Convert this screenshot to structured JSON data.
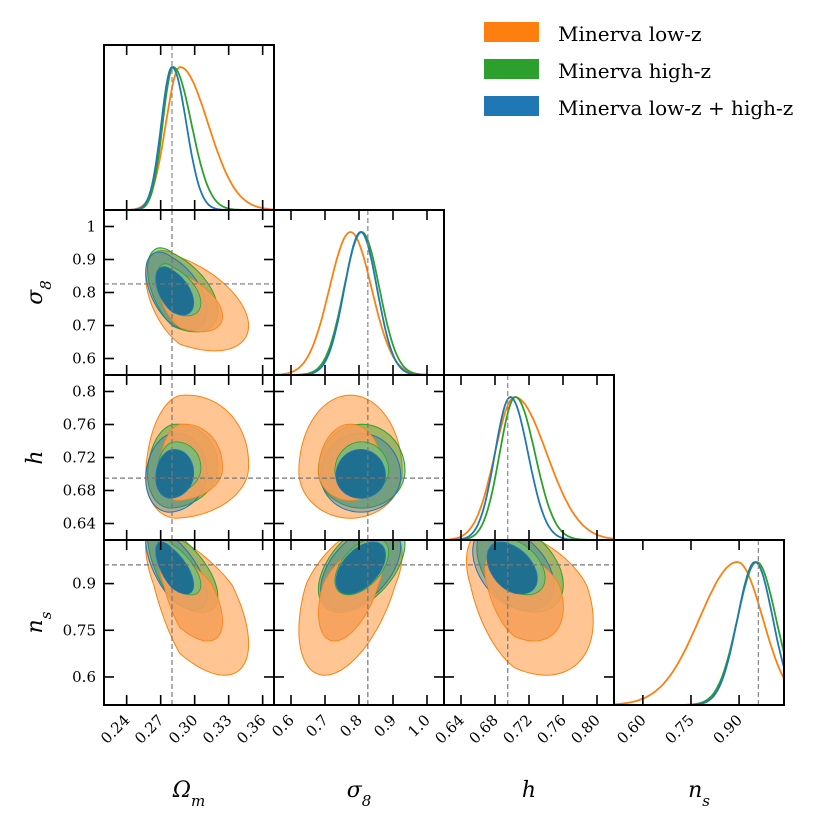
{
  "chart_data": {
    "type": "corner",
    "title": "",
    "parameters": [
      {
        "key": "Om",
        "label": "Ω",
        "sub": "m",
        "range": [
          0.22,
          0.37
        ],
        "ticks": [
          0.24,
          0.27,
          0.3,
          0.33,
          0.36
        ],
        "tick_labels": [
          "0.24",
          "0.27",
          "0.30",
          "0.33",
          "0.36"
        ],
        "fiducial": 0.28
      },
      {
        "key": "s8",
        "label": "σ",
        "sub": "8",
        "range": [
          0.55,
          1.05
        ],
        "ticks": [
          0.6,
          0.7,
          0.8,
          0.9,
          1.0
        ],
        "tick_labels": [
          "0.6",
          "0.7",
          "0.8",
          "0.9",
          "1.0"
        ],
        "y_ticks": [
          0.6,
          0.7,
          0.8,
          0.9,
          1.0
        ],
        "y_tick_labels": [
          "0.6",
          "0.7",
          "0.8",
          "0.9",
          "1"
        ],
        "fiducial": 0.826
      },
      {
        "key": "h",
        "label": "h",
        "sub": "",
        "range": [
          0.62,
          0.82
        ],
        "ticks": [
          0.64,
          0.68,
          0.72,
          0.76,
          0.8
        ],
        "tick_labels": [
          "0.64",
          "0.68",
          "0.72",
          "0.76",
          "0.80"
        ],
        "y_ticks": [
          0.64,
          0.68,
          0.72,
          0.76,
          0.8
        ],
        "y_tick_labels": [
          "0.64",
          "0.68",
          "0.72",
          "0.76",
          "0.8"
        ],
        "fiducial": 0.695
      },
      {
        "key": "ns",
        "label": "n",
        "sub": "s",
        "range": [
          0.51,
          1.04
        ],
        "ticks": [
          0.6,
          0.75,
          0.9
        ],
        "tick_labels": [
          "0.60",
          "0.75",
          "0.90"
        ],
        "y_ticks": [
          0.6,
          0.75,
          0.9
        ],
        "y_tick_labels": [
          "0.6",
          "0.75",
          "0.9"
        ],
        "fiducial": 0.96
      }
    ],
    "series": [
      {
        "name": "Minerva low-z",
        "color": "#ff7f0e",
        "mean": {
          "Om": 0.287,
          "s8": 0.775,
          "h": 0.703,
          "ns": 0.895
        },
        "sigma": {
          "Om": 0.0165,
          "s8": 0.062,
          "h": 0.028,
          "ns": 0.105
        },
        "skew": {
          "Om": 0.5,
          "s8": 0.0,
          "h": 0.35,
          "ns": -0.25
        },
        "corr": {
          "Om-s8": -0.5,
          "Om-h": 0.1,
          "Om-ns": -0.65,
          "s8-h": 0.0,
          "s8-ns": 0.5,
          "h-ns": -0.4
        }
      },
      {
        "name": "Minerva high-z",
        "color": "#2ca02c",
        "mean": {
          "Om": 0.281,
          "s8": 0.808,
          "h": 0.704,
          "ns": 0.955
        },
        "sigma": {
          "Om": 0.0115,
          "s8": 0.052,
          "h": 0.02,
          "ns": 0.06
        },
        "skew": {
          "Om": 0.4,
          "s8": 0.0,
          "h": 0.15,
          "ns": 0.0
        },
        "corr": {
          "Om-s8": -0.5,
          "Om-h": 0.1,
          "Om-ns": -0.65,
          "s8-h": 0.0,
          "s8-ns": 0.5,
          "h-ns": -0.4
        }
      },
      {
        "name": "Minerva low-z + high-z",
        "color": "#1f77b4",
        "mean": {
          "Om": 0.28,
          "s8": 0.805,
          "h": 0.698,
          "ns": 0.95
        },
        "sigma": {
          "Om": 0.0105,
          "s8": 0.048,
          "h": 0.019,
          "ns": 0.055
        },
        "skew": {
          "Om": 0.2,
          "s8": 0.0,
          "h": 0.1,
          "ns": 0.0
        },
        "corr": {
          "Om-s8": -0.5,
          "Om-h": 0.1,
          "Om-ns": -0.65,
          "s8-h": 0.0,
          "s8-ns": 0.5,
          "h-ns": -0.4
        }
      }
    ],
    "legend": {
      "position": "top-right",
      "entries": [
        {
          "label": "Minerva low-z",
          "color": "#ff7f0e"
        },
        {
          "label": "Minerva high-z",
          "color": "#2ca02c"
        },
        {
          "label": "Minerva low-z + high-z",
          "color": "#1f77b4"
        }
      ]
    }
  }
}
